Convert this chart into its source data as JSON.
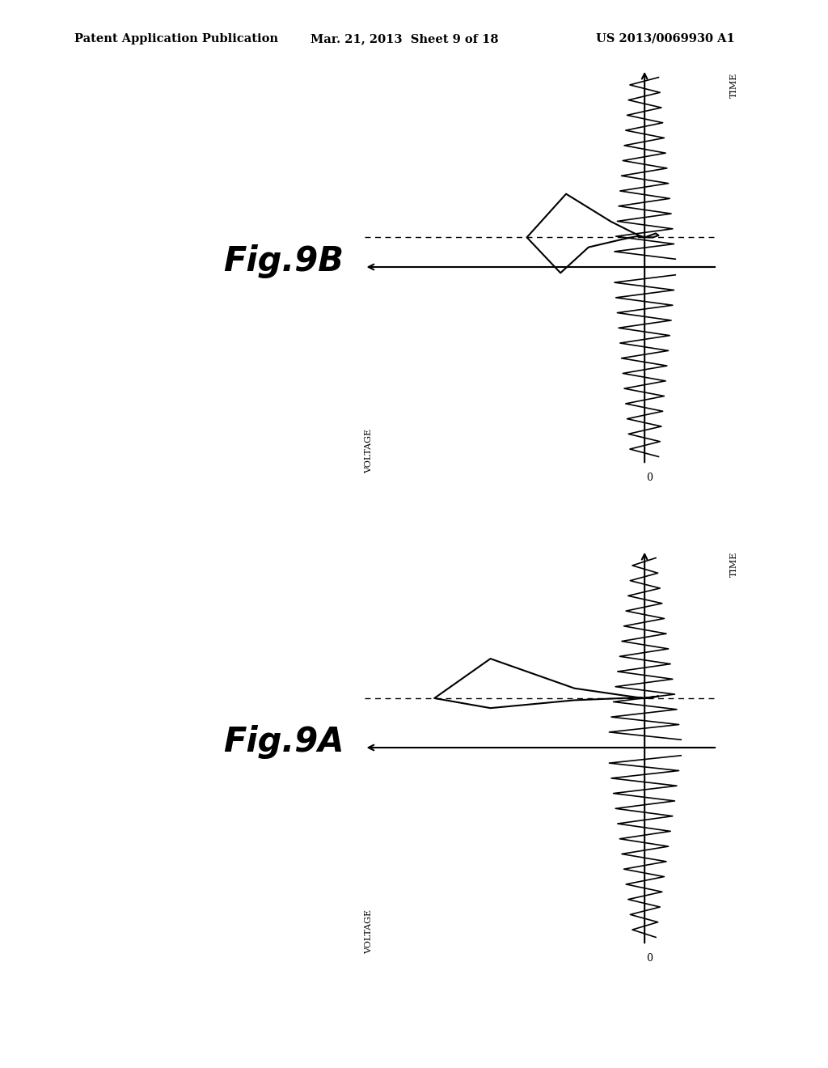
{
  "title_line1": "Patent Application Publication",
  "title_line2": "Mar. 21, 2013  Sheet 9 of 18",
  "title_line3": "US 2013/0069930 A1",
  "fig_label_A": "Fig.9A",
  "fig_label_B": "Fig.9B",
  "voltage_label": "VOLTAGE",
  "time_label": "TIME",
  "zero_label": "0",
  "background_color": "#ffffff",
  "header_font_size": 10.5,
  "fig_label_font_size": 30,
  "axis_label_font_size": 8,
  "zero_font_size": 9
}
